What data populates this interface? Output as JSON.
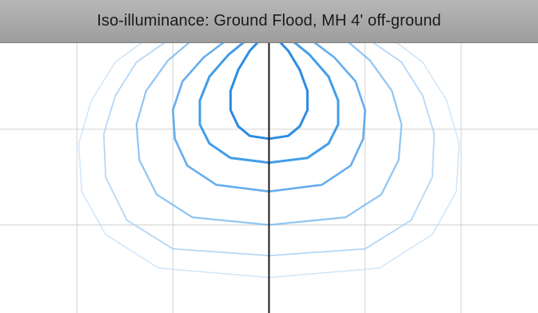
{
  "window": {
    "title": "Iso-illuminance: Ground Flood, MH 4' off-ground"
  },
  "chart_data": {
    "type": "line",
    "title": "Iso-illuminance: Ground Flood, MH 4' off-ground",
    "xlabel": "",
    "ylabel": "",
    "grid": true,
    "grid_color": "#d8d8d8",
    "axis_color": "#1a1a1a",
    "luminaire_color": "#8a6d5a",
    "x_range": [
      -2.8,
      2.8
    ],
    "y_range": [
      -2.92,
      0.35
    ],
    "series": [
      {
        "color": "#1f86e0",
        "opacity": 0.95,
        "stroke": 3,
        "x": [
          -0.03,
          -0.2,
          -0.32,
          -0.4,
          -0.4,
          -0.32,
          -0.2,
          0,
          0.2,
          0.32,
          0.4,
          0.4,
          0.32,
          0.2,
          0.03
        ],
        "y": [
          0,
          -0.18,
          -0.38,
          -0.6,
          -0.8,
          -0.97,
          -1.07,
          -1.1,
          -1.07,
          -0.97,
          -0.8,
          -0.6,
          -0.38,
          -0.18,
          0
        ]
      },
      {
        "color": "#2d92e6",
        "opacity": 0.9,
        "stroke": 3,
        "x": [
          -0.15,
          -0.42,
          -0.62,
          -0.72,
          -0.72,
          -0.62,
          -0.4,
          0,
          0.4,
          0.62,
          0.72,
          0.72,
          0.62,
          0.42,
          0.15
        ],
        "y": [
          0,
          -0.22,
          -0.45,
          -0.7,
          -0.95,
          -1.15,
          -1.3,
          -1.35,
          -1.3,
          -1.15,
          -0.95,
          -0.7,
          -0.45,
          -0.22,
          0
        ]
      },
      {
        "color": "#4aa0eb",
        "opacity": 0.85,
        "stroke": 2.6,
        "x": [
          -0.35,
          -0.68,
          -0.9,
          -1.0,
          -0.98,
          -0.85,
          -0.55,
          0,
          0.55,
          0.85,
          0.98,
          1.0,
          0.9,
          0.68,
          0.35
        ],
        "y": [
          0,
          -0.25,
          -0.5,
          -0.8,
          -1.1,
          -1.38,
          -1.58,
          -1.65,
          -1.58,
          -1.38,
          -1.1,
          -0.8,
          -0.5,
          -0.25,
          0
        ]
      },
      {
        "color": "#72b6f0",
        "opacity": 0.8,
        "stroke": 2.2,
        "x": [
          -0.72,
          -1.05,
          -1.28,
          -1.38,
          -1.35,
          -1.17,
          -0.8,
          0,
          0.8,
          1.17,
          1.35,
          1.38,
          1.28,
          1.05,
          0.72
        ],
        "y": [
          0,
          -0.28,
          -0.6,
          -0.95,
          -1.32,
          -1.68,
          -1.92,
          -2.0,
          -1.92,
          -1.68,
          -1.32,
          -0.95,
          -0.6,
          -0.28,
          0
        ]
      },
      {
        "color": "#a2cdf5",
        "opacity": 0.8,
        "stroke": 1.8,
        "x": [
          -0.95,
          -1.38,
          -1.6,
          -1.72,
          -1.7,
          -1.48,
          -1.0,
          0,
          1.0,
          1.48,
          1.7,
          1.72,
          1.6,
          1.38,
          0.95
        ],
        "y": [
          0,
          -0.3,
          -0.65,
          -1.05,
          -1.5,
          -1.95,
          -2.25,
          -2.32,
          -2.25,
          -1.95,
          -1.5,
          -1.05,
          -0.65,
          -0.3,
          0
        ]
      },
      {
        "color": "#c4dff8",
        "opacity": 0.8,
        "stroke": 1.5,
        "x": [
          -1.2,
          -1.6,
          -1.85,
          -1.98,
          -1.95,
          -1.7,
          -1.15,
          0,
          1.15,
          1.7,
          1.95,
          1.98,
          1.85,
          1.6,
          1.2
        ],
        "y": [
          0,
          -0.3,
          -0.7,
          -1.15,
          -1.65,
          -2.1,
          -2.45,
          -2.55,
          -2.45,
          -2.1,
          -1.65,
          -1.15,
          -0.7,
          -0.3,
          0
        ]
      }
    ]
  }
}
